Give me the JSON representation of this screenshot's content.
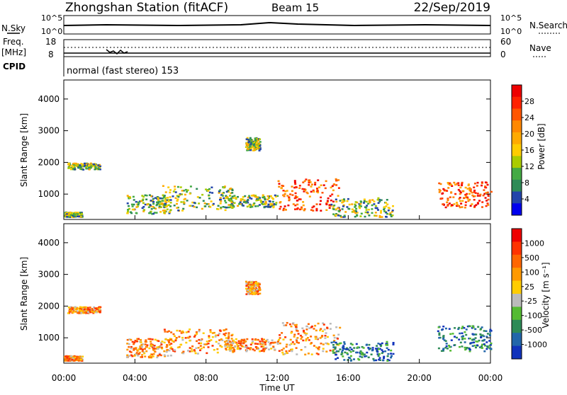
{
  "header": {
    "station": "Zhongshan Station (fitACF)",
    "beam": "Beam 15",
    "date": "22/Sep/2019"
  },
  "top_panels": {
    "nsky_label": "N.Sky",
    "nsearch_label": "N.Search",
    "noise_ticks": [
      "10^5",
      "10^0"
    ],
    "freq_label_1": "Freq.",
    "freq_label_2": "[MHz]",
    "freq_ticks": [
      "18",
      "8"
    ],
    "nave_label": "Nave",
    "nave_ticks": [
      "60",
      "0"
    ],
    "cpid_label": "CPID",
    "cpid_text": "normal (fast stereo) 153"
  },
  "chart_data": [
    {
      "type": "heatmap",
      "name": "power",
      "ylabel": "Slant Range [km]",
      "yticks": [
        1000,
        2000,
        3000,
        4000
      ],
      "ylim": [
        200,
        4600
      ],
      "xlim_hours": [
        0,
        24
      ],
      "colorbar_label": "Power [dB]",
      "colorbar_ticks": [
        "28",
        "24",
        "20",
        "16",
        "12",
        "8",
        "4"
      ],
      "colorbar_colors": [
        "#0000ee",
        "#2244aa",
        "#2e8b57",
        "#44aa44",
        "#aacc00",
        "#ffcc00",
        "#ffaa00",
        "#ff8800",
        "#ff5500",
        "#ff2200",
        "#ee0000"
      ]
    },
    {
      "type": "heatmap",
      "name": "velocity",
      "ylabel": "Slant Range [km]",
      "yticks": [
        1000,
        2000,
        3000,
        4000
      ],
      "ylim": [
        200,
        4600
      ],
      "xlim_hours": [
        0,
        24
      ],
      "colorbar_label": "Velocity [m s⁻¹]",
      "colorbar_ticks": [
        "1000",
        "500",
        "100",
        "25",
        "-25",
        "-100",
        "-500",
        "-1000"
      ],
      "colorbar_colors": [
        "#1133bb",
        "#2266aa",
        "#2e8b57",
        "#55bb33",
        "#bbbbbb",
        "#ffcc00",
        "#ff9900",
        "#ff6600",
        "#ff3300",
        "#ee0000"
      ]
    }
  ],
  "xaxis": {
    "ticks": [
      "00:00",
      "04:00",
      "08:00",
      "12:00",
      "16:00",
      "20:00",
      "00:00"
    ],
    "label": "Time UT"
  }
}
